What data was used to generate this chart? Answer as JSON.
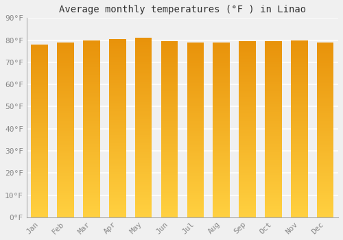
{
  "title": "Average monthly temperatures (°F ) in Linao",
  "months": [
    "Jan",
    "Feb",
    "Mar",
    "Apr",
    "May",
    "Jun",
    "Jul",
    "Aug",
    "Sep",
    "Oct",
    "Nov",
    "Dec"
  ],
  "values": [
    78.1,
    79.0,
    79.9,
    80.6,
    81.0,
    79.7,
    79.0,
    79.0,
    79.5,
    79.7,
    79.9,
    79.0
  ],
  "bar_color_top": "#E8920A",
  "bar_color_bottom": "#FFD040",
  "ylim": [
    0,
    90
  ],
  "yticks": [
    0,
    10,
    20,
    30,
    40,
    50,
    60,
    70,
    80,
    90
  ],
  "ytick_labels": [
    "0°F",
    "10°F",
    "20°F",
    "30°F",
    "40°F",
    "50°F",
    "60°F",
    "70°F",
    "80°F",
    "90°F"
  ],
  "background_color": "#f0f0f0",
  "grid_color": "#ffffff",
  "title_fontsize": 10,
  "tick_fontsize": 8,
  "bar_width": 0.65
}
